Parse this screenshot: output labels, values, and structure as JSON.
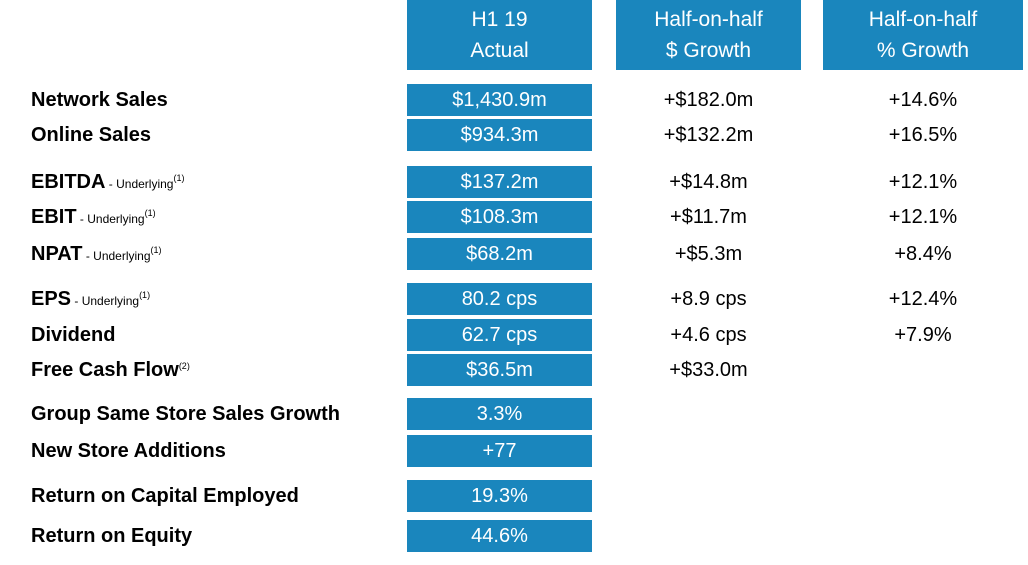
{
  "header": {
    "actual": [
      "H1 19",
      "Actual"
    ],
    "dollar_growth": [
      "Half-on-half",
      "$ Growth"
    ],
    "pct_growth": [
      "Half-on-half",
      "% Growth"
    ]
  },
  "rows": [
    {
      "label": "Network Sales",
      "sub": "",
      "sup": "",
      "actual": "$1,430.9m",
      "dollar": "+$182.0m",
      "pct": "+14.6%"
    },
    {
      "label": "Online Sales",
      "sub": "",
      "sup": "",
      "actual": "$934.3m",
      "dollar": "+$132.2m",
      "pct": "+16.5%"
    },
    {
      "label": "EBITDA",
      "sub": " - Underlying",
      "sup": "(1)",
      "actual": "$137.2m",
      "dollar": "+$14.8m",
      "pct": "+12.1%"
    },
    {
      "label": "EBIT",
      "sub": " - Underlying",
      "sup": "(1)",
      "actual": "$108.3m",
      "dollar": "+$11.7m",
      "pct": "+12.1%"
    },
    {
      "label": "NPAT",
      "sub": " - Underlying",
      "sup": "(1)",
      "actual": "$68.2m",
      "dollar": "+$5.3m",
      "pct": "+8.4%"
    },
    {
      "label": "EPS",
      "sub": " - Underlying",
      "sup": "(1)",
      "actual": "80.2 cps",
      "dollar": "+8.9 cps",
      "pct": "+12.4%"
    },
    {
      "label": "Dividend",
      "sub": "",
      "sup": "",
      "actual": "62.7 cps",
      "dollar": "+4.6 cps",
      "pct": "+7.9%"
    },
    {
      "label": "Free Cash Flow",
      "sub": "",
      "sup": "(2)",
      "actual": "$36.5m",
      "dollar": "+$33.0m",
      "pct": ""
    },
    {
      "label": "Group Same Store Sales Growth",
      "sub": "",
      "sup": "",
      "actual": "3.3%",
      "dollar": "",
      "pct": ""
    },
    {
      "label": "New Store Additions",
      "sub": "",
      "sup": "",
      "actual": "+77",
      "dollar": "",
      "pct": ""
    },
    {
      "label": "Return on Capital Employed",
      "sub": "",
      "sup": "",
      "actual": "19.3%",
      "dollar": "",
      "pct": ""
    },
    {
      "label": "Return on Equity",
      "sub": "",
      "sup": "",
      "actual": "44.6%",
      "dollar": "",
      "pct": ""
    }
  ],
  "colors": {
    "accent": "#1a86bd",
    "header_text": "#ffffff"
  }
}
